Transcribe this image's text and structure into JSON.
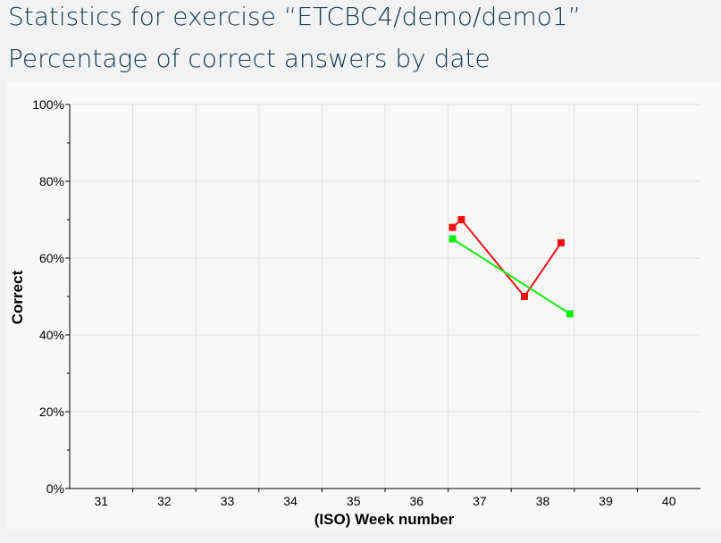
{
  "page": {
    "title": "Statistics for exercise “ETCBC4/demo/demo1”",
    "subtitle": "Percentage of correct answers by date"
  },
  "colors": {
    "series_red": "#ee1111",
    "series_green": "#11ee11",
    "heading": "#0b3a52",
    "plot_background": "#f8f8f8",
    "gridline": "#e0e0e0"
  },
  "chart_data": {
    "type": "line",
    "title": "",
    "xlabel": "(ISO) Week number",
    "ylabel": "Correct",
    "xlim": [
      30.5,
      40.5
    ],
    "ylim": [
      0,
      100
    ],
    "x_ticks": [
      31,
      32,
      33,
      34,
      35,
      36,
      37,
      38,
      39,
      40
    ],
    "x_tick_labels": [
      "31",
      "32",
      "33",
      "34",
      "35",
      "36",
      "37",
      "38",
      "39",
      "40"
    ],
    "y_ticks": [
      0,
      20,
      40,
      60,
      80,
      100
    ],
    "y_tick_labels": [
      "0%",
      "20%",
      "40%",
      "60%",
      "80%",
      "100%"
    ],
    "grid": true,
    "legend": "none",
    "series": [
      {
        "color": "#ee1111",
        "x": [
          36.57,
          36.71,
          37.71,
          38.29
        ],
        "y": [
          68,
          70,
          50,
          64
        ]
      },
      {
        "color": "#11ee11",
        "x": [
          36.57,
          38.43
        ],
        "y": [
          65,
          45.5
        ]
      }
    ]
  }
}
